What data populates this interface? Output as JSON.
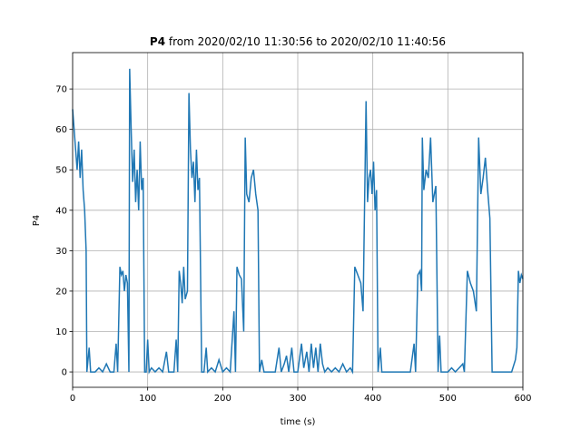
{
  "chart_data": {
    "type": "line",
    "title_bold": "P4",
    "title": "from 2020/02/10 11:30:56 to 2020/02/10 11:40:56",
    "xlabel": "time (s)",
    "ylabel": "P4",
    "xlim": [
      0,
      600
    ],
    "ylim": [
      -3.8,
      79
    ],
    "xticks": [
      0,
      100,
      200,
      300,
      400,
      500,
      600
    ],
    "yticks": [
      0,
      10,
      20,
      30,
      40,
      50,
      60,
      70
    ],
    "grid": true,
    "series": [
      {
        "name": "P4",
        "color": "#1f77b4",
        "x": [
          0,
          2,
          4,
          6,
          8,
          10,
          12,
          14,
          16,
          17,
          18,
          19,
          22,
          24,
          30,
          35,
          40,
          45,
          50,
          55,
          58,
          60,
          63,
          65,
          67,
          69,
          71,
          73,
          75,
          76,
          78,
          80,
          82,
          84,
          86,
          88,
          90,
          92,
          94,
          96,
          98,
          100,
          102,
          105,
          110,
          115,
          120,
          125,
          128,
          135,
          138,
          140,
          142,
          144,
          146,
          148,
          150,
          153,
          155,
          157,
          159,
          161,
          163,
          165,
          167,
          169,
          172,
          175,
          178,
          180,
          185,
          190,
          195,
          200,
          205,
          210,
          215,
          217,
          219,
          222,
          225,
          228,
          230,
          232,
          235,
          238,
          241,
          244,
          247,
          249,
          252,
          255,
          260,
          270,
          275,
          278,
          282,
          285,
          288,
          292,
          295,
          300,
          305,
          308,
          312,
          315,
          318,
          321,
          324,
          327,
          330,
          333,
          336,
          340,
          345,
          350,
          355,
          360,
          365,
          370,
          373,
          376,
          380,
          384,
          387,
          391,
          393,
          395,
          397,
          399,
          401,
          403,
          405,
          407,
          410,
          412,
          420,
          430,
          440,
          450,
          455,
          457,
          460,
          463,
          465,
          466,
          468,
          471,
          474,
          477,
          480,
          484,
          487,
          489,
          491,
          500,
          505,
          510,
          515,
          520,
          522,
          526,
          530,
          534,
          538,
          541,
          544,
          547,
          550,
          553,
          556,
          559,
          565,
          570,
          575,
          580,
          585,
          590,
          592,
          594,
          596,
          598,
          600
        ],
        "values": [
          65,
          60,
          55,
          50,
          57,
          48,
          55,
          45,
          40,
          35,
          30,
          0,
          6,
          0,
          0,
          1,
          0,
          2,
          0,
          0,
          7,
          0,
          26,
          24,
          25,
          20,
          24,
          22,
          0,
          75,
          60,
          47,
          55,
          42,
          50,
          40,
          57,
          45,
          48,
          0,
          0,
          8,
          0,
          1,
          0,
          1,
          0,
          5,
          0,
          0,
          8,
          0,
          25,
          22,
          17,
          26,
          18,
          20,
          69,
          55,
          48,
          52,
          42,
          55,
          45,
          48,
          0,
          0,
          6,
          0,
          1,
          0,
          3,
          0,
          1,
          0,
          15,
          0,
          26,
          24,
          23,
          10,
          58,
          44,
          42,
          48,
          50,
          44,
          40,
          0,
          3,
          0,
          0,
          0,
          6,
          0,
          2,
          4,
          0,
          6,
          0,
          0,
          7,
          1,
          5,
          0,
          7,
          1,
          6,
          0,
          7,
          2,
          0,
          1,
          0,
          1,
          0,
          2,
          0,
          1,
          0,
          26,
          24,
          22,
          15,
          67,
          42,
          48,
          50,
          44,
          52,
          40,
          45,
          0,
          6,
          0,
          0,
          0,
          0,
          0,
          7,
          0,
          24,
          25,
          20,
          58,
          45,
          50,
          48,
          58,
          42,
          46,
          0,
          9,
          0,
          0,
          1,
          0,
          1,
          2,
          0,
          25,
          22,
          20,
          15,
          58,
          44,
          48,
          53,
          45,
          38,
          0,
          0,
          0,
          0,
          0,
          0,
          3,
          6,
          25,
          22,
          24,
          23
        ]
      }
    ]
  }
}
